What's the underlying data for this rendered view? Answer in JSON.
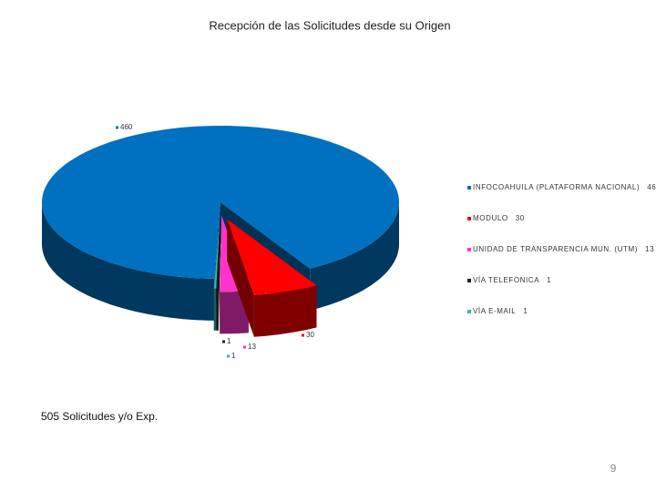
{
  "chart_data": {
    "type": "pie",
    "title": "Recepción de las Solicitudes desde su Origen",
    "categories": [
      "INFOCOAHUILA (PLATAFORMA NACIONAL)",
      "MODULO",
      "UNIDAD DE TRANSPARENCIA MUN. (UTM)",
      "VÍA TELEFONICA",
      "VÍA E-MAIL"
    ],
    "values": [
      460,
      30,
      13,
      1,
      1
    ],
    "colors": [
      "#0070c0",
      "#ff0000",
      "#ff33cc",
      "#1f1f1f",
      "#33b5b5"
    ],
    "legend": "right"
  },
  "footer_text": "505 Solicitudes y/o Exp.",
  "page_number": "9"
}
